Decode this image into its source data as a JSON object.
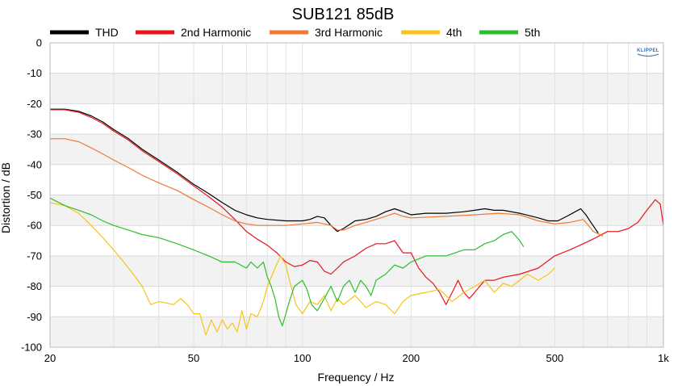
{
  "chart_data": {
    "type": "line",
    "title": "SUB121 85dB",
    "xlabel": "Frequency / Hz",
    "ylabel": "Distortion / dB",
    "xscale": "log",
    "xlim": [
      20,
      1000
    ],
    "ylim": [
      -100,
      0
    ],
    "grid": true,
    "legend_position": "top",
    "x_ticks": [
      {
        "value": 20,
        "label": "20"
      },
      {
        "value": 50,
        "label": "50"
      },
      {
        "value": 100,
        "label": "100"
      },
      {
        "value": 200,
        "label": "200"
      },
      {
        "value": 500,
        "label": "500"
      },
      {
        "value": 1000,
        "label": "1k"
      }
    ],
    "y_ticks": [
      {
        "value": 0,
        "label": "0"
      },
      {
        "value": -10,
        "label": "-10"
      },
      {
        "value": -20,
        "label": "-20"
      },
      {
        "value": -30,
        "label": "-30"
      },
      {
        "value": -40,
        "label": "-40"
      },
      {
        "value": -50,
        "label": "-50"
      },
      {
        "value": -60,
        "label": "-60"
      },
      {
        "value": -70,
        "label": "-70"
      },
      {
        "value": -80,
        "label": "-80"
      },
      {
        "value": -90,
        "label": "-90"
      },
      {
        "value": -100,
        "label": "-100"
      }
    ],
    "logo": "KLIPPEL",
    "series": [
      {
        "name": "THD",
        "color": "#000000",
        "points": [
          [
            20,
            -21.8
          ],
          [
            22,
            -21.8
          ],
          [
            24,
            -22.5
          ],
          [
            26,
            -24
          ],
          [
            28,
            -26
          ],
          [
            30,
            -28.5
          ],
          [
            33,
            -31.5
          ],
          [
            36,
            -35
          ],
          [
            40,
            -38.5
          ],
          [
            45,
            -42.5
          ],
          [
            50,
            -46.5
          ],
          [
            55,
            -49.5
          ],
          [
            60,
            -52.5
          ],
          [
            65,
            -55
          ],
          [
            70,
            -56.5
          ],
          [
            75,
            -57.5
          ],
          [
            80,
            -58
          ],
          [
            90,
            -58.5
          ],
          [
            100,
            -58.5
          ],
          [
            105,
            -58
          ],
          [
            110,
            -57
          ],
          [
            115,
            -57.5
          ],
          [
            120,
            -60
          ],
          [
            125,
            -62
          ],
          [
            130,
            -61
          ],
          [
            140,
            -58.5
          ],
          [
            150,
            -58
          ],
          [
            160,
            -57
          ],
          [
            170,
            -55.5
          ],
          [
            180,
            -54.5
          ],
          [
            190,
            -55.5
          ],
          [
            200,
            -56.5
          ],
          [
            220,
            -56
          ],
          [
            250,
            -56
          ],
          [
            280,
            -55.5
          ],
          [
            300,
            -55
          ],
          [
            320,
            -54.5
          ],
          [
            340,
            -55
          ],
          [
            360,
            -55
          ],
          [
            400,
            -56
          ],
          [
            450,
            -57.5
          ],
          [
            480,
            -58.5
          ],
          [
            510,
            -58.5
          ],
          [
            540,
            -57
          ],
          [
            570,
            -55.5
          ],
          [
            590,
            -54.5
          ],
          [
            610,
            -56.5
          ],
          [
            630,
            -59
          ],
          [
            660,
            -62.5
          ]
        ]
      },
      {
        "name": "2nd Harmonic",
        "color": "#e8141c",
        "points": [
          [
            20,
            -22
          ],
          [
            22,
            -22
          ],
          [
            24,
            -22.8
          ],
          [
            26,
            -24.5
          ],
          [
            28,
            -26.5
          ],
          [
            30,
            -29
          ],
          [
            33,
            -32
          ],
          [
            36,
            -35.5
          ],
          [
            40,
            -39
          ],
          [
            45,
            -43
          ],
          [
            50,
            -47
          ],
          [
            55,
            -50.5
          ],
          [
            60,
            -54
          ],
          [
            65,
            -58
          ],
          [
            70,
            -62
          ],
          [
            75,
            -64.5
          ],
          [
            80,
            -66.5
          ],
          [
            85,
            -69
          ],
          [
            90,
            -72
          ],
          [
            95,
            -73.5
          ],
          [
            100,
            -73
          ],
          [
            105,
            -71.5
          ],
          [
            110,
            -72
          ],
          [
            115,
            -75
          ],
          [
            120,
            -76
          ],
          [
            125,
            -74
          ],
          [
            130,
            -72
          ],
          [
            140,
            -70
          ],
          [
            150,
            -67.5
          ],
          [
            160,
            -66
          ],
          [
            170,
            -66
          ],
          [
            180,
            -65
          ],
          [
            190,
            -69
          ],
          [
            200,
            -69
          ],
          [
            210,
            -74
          ],
          [
            220,
            -77
          ],
          [
            230,
            -79
          ],
          [
            240,
            -82
          ],
          [
            250,
            -86
          ],
          [
            260,
            -82
          ],
          [
            270,
            -78
          ],
          [
            280,
            -82
          ],
          [
            290,
            -84
          ],
          [
            300,
            -82
          ],
          [
            320,
            -78
          ],
          [
            340,
            -78
          ],
          [
            360,
            -77
          ],
          [
            400,
            -76
          ],
          [
            450,
            -74
          ],
          [
            500,
            -70
          ],
          [
            550,
            -68
          ],
          [
            600,
            -66
          ],
          [
            650,
            -64
          ],
          [
            700,
            -62
          ],
          [
            750,
            -62
          ],
          [
            800,
            -61
          ],
          [
            850,
            -59
          ],
          [
            900,
            -55
          ],
          [
            950,
            -51.5
          ],
          [
            980,
            -53
          ],
          [
            1000,
            -60
          ]
        ]
      },
      {
        "name": "3rd Harmonic",
        "color": "#f07833",
        "points": [
          [
            20,
            -31.5
          ],
          [
            22,
            -31.5
          ],
          [
            24,
            -32.5
          ],
          [
            26,
            -34.5
          ],
          [
            28,
            -36.5
          ],
          [
            30,
            -38.5
          ],
          [
            33,
            -41
          ],
          [
            36,
            -43.5
          ],
          [
            40,
            -46
          ],
          [
            45,
            -48.5
          ],
          [
            50,
            -51.5
          ],
          [
            55,
            -54
          ],
          [
            60,
            -56.5
          ],
          [
            65,
            -58.5
          ],
          [
            70,
            -59.5
          ],
          [
            75,
            -60
          ],
          [
            80,
            -60
          ],
          [
            90,
            -60
          ],
          [
            100,
            -59.5
          ],
          [
            110,
            -59
          ],
          [
            120,
            -60
          ],
          [
            125,
            -61.5
          ],
          [
            130,
            -61.5
          ],
          [
            140,
            -60
          ],
          [
            150,
            -59
          ],
          [
            170,
            -57
          ],
          [
            180,
            -56
          ],
          [
            190,
            -57
          ],
          [
            200,
            -57.5
          ],
          [
            250,
            -57
          ],
          [
            300,
            -56.5
          ],
          [
            350,
            -56
          ],
          [
            400,
            -56.5
          ],
          [
            450,
            -58.5
          ],
          [
            500,
            -59.5
          ],
          [
            550,
            -59
          ],
          [
            600,
            -58
          ],
          [
            640,
            -62
          ],
          [
            680,
            -63.5
          ]
        ]
      },
      {
        "name": "4th",
        "color": "#f5c518",
        "points": [
          [
            20,
            -52.5
          ],
          [
            22,
            -53.5
          ],
          [
            24,
            -56
          ],
          [
            26,
            -60
          ],
          [
            28,
            -64
          ],
          [
            30,
            -68
          ],
          [
            32,
            -72
          ],
          [
            34,
            -76
          ],
          [
            36,
            -80
          ],
          [
            38,
            -86
          ],
          [
            40,
            -85
          ],
          [
            44,
            -86
          ],
          [
            46,
            -84
          ],
          [
            48,
            -86
          ],
          [
            50,
            -89
          ],
          [
            52,
            -89
          ],
          [
            54,
            -96
          ],
          [
            56,
            -91
          ],
          [
            58,
            -95
          ],
          [
            60,
            -91
          ],
          [
            62,
            -94
          ],
          [
            64,
            -92
          ],
          [
            66,
            -95
          ],
          [
            68,
            -88
          ],
          [
            70,
            -94
          ],
          [
            72,
            -89
          ],
          [
            75,
            -90
          ],
          [
            78,
            -85
          ],
          [
            80,
            -80
          ],
          [
            84,
            -74
          ],
          [
            87,
            -70
          ],
          [
            90,
            -73
          ],
          [
            93,
            -80
          ],
          [
            96,
            -86
          ],
          [
            100,
            -89
          ],
          [
            105,
            -85
          ],
          [
            110,
            -86
          ],
          [
            115,
            -83
          ],
          [
            120,
            -88
          ],
          [
            125,
            -84
          ],
          [
            130,
            -86
          ],
          [
            140,
            -83
          ],
          [
            150,
            -87
          ],
          [
            160,
            -85
          ],
          [
            170,
            -86
          ],
          [
            180,
            -89
          ],
          [
            190,
            -85
          ],
          [
            200,
            -83
          ],
          [
            220,
            -82
          ],
          [
            240,
            -81
          ],
          [
            260,
            -85
          ],
          [
            280,
            -82
          ],
          [
            300,
            -80
          ],
          [
            320,
            -78
          ],
          [
            340,
            -82
          ],
          [
            360,
            -79
          ],
          [
            380,
            -80
          ],
          [
            400,
            -78
          ],
          [
            420,
            -76
          ],
          [
            450,
            -78
          ],
          [
            480,
            -76
          ],
          [
            500,
            -74
          ]
        ]
      },
      {
        "name": "5th",
        "color": "#2cbf2c",
        "points": [
          [
            20,
            -51
          ],
          [
            22,
            -53.5
          ],
          [
            24,
            -55
          ],
          [
            26,
            -56.5
          ],
          [
            28,
            -58.5
          ],
          [
            30,
            -60
          ],
          [
            33,
            -61.5
          ],
          [
            36,
            -63
          ],
          [
            40,
            -64
          ],
          [
            45,
            -66
          ],
          [
            50,
            -68
          ],
          [
            55,
            -70
          ],
          [
            60,
            -72
          ],
          [
            65,
            -72
          ],
          [
            70,
            -74
          ],
          [
            72,
            -72
          ],
          [
            75,
            -74
          ],
          [
            78,
            -72
          ],
          [
            80,
            -77
          ],
          [
            82,
            -80
          ],
          [
            84,
            -84
          ],
          [
            86,
            -90
          ],
          [
            88,
            -93
          ],
          [
            90,
            -89
          ],
          [
            92,
            -85
          ],
          [
            95,
            -80
          ],
          [
            100,
            -78
          ],
          [
            103,
            -81
          ],
          [
            106,
            -86
          ],
          [
            110,
            -88
          ],
          [
            115,
            -84
          ],
          [
            120,
            -80
          ],
          [
            125,
            -85
          ],
          [
            130,
            -80
          ],
          [
            135,
            -78
          ],
          [
            140,
            -82
          ],
          [
            145,
            -78
          ],
          [
            150,
            -80
          ],
          [
            155,
            -83
          ],
          [
            160,
            -78
          ],
          [
            170,
            -76
          ],
          [
            180,
            -73
          ],
          [
            190,
            -74
          ],
          [
            200,
            -72
          ],
          [
            220,
            -70
          ],
          [
            250,
            -70
          ],
          [
            280,
            -68
          ],
          [
            300,
            -68
          ],
          [
            320,
            -66
          ],
          [
            340,
            -65
          ],
          [
            360,
            -63
          ],
          [
            380,
            -62
          ],
          [
            400,
            -65
          ],
          [
            410,
            -67
          ]
        ]
      }
    ]
  }
}
